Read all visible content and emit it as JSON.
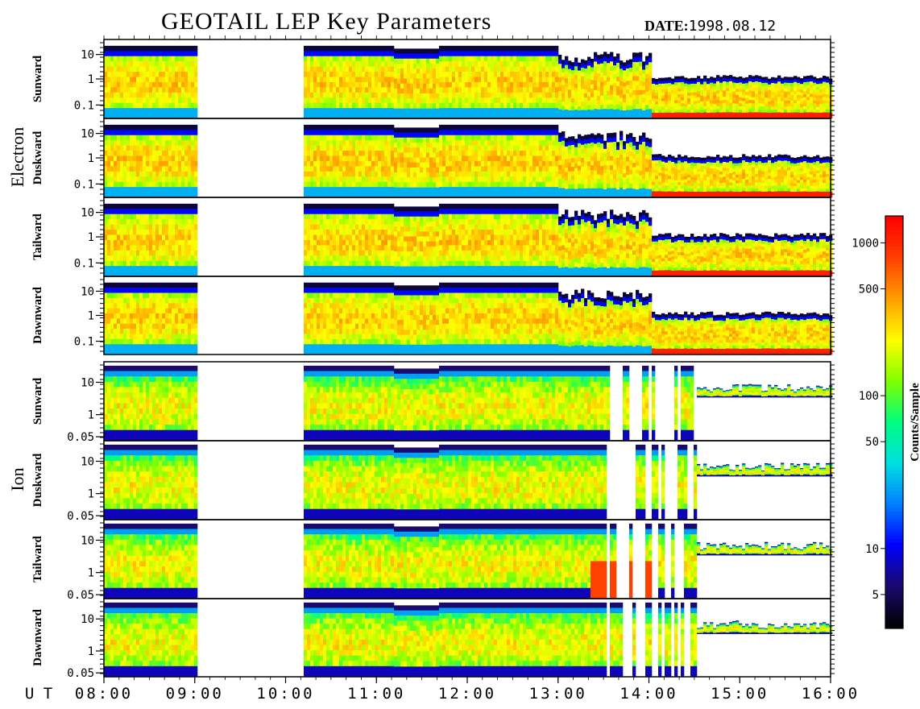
{
  "title": "GEOTAIL LEP Key Parameters",
  "date_label": "DATE:",
  "date_value": "1998.08.12",
  "ut_label": "U T",
  "colorbar": {
    "label": "Counts/Sample",
    "ticks": [
      "1000",
      "500",
      "100",
      "50",
      "10",
      "5"
    ],
    "tick_values": [
      1000,
      500,
      100,
      50,
      10,
      5
    ],
    "range": [
      3,
      1500
    ],
    "scale": "log",
    "colormap": [
      "#000000",
      "#1a0a6e",
      "#0000ff",
      "#0080ff",
      "#00e0e0",
      "#00ff80",
      "#80ff00",
      "#ffff00",
      "#ffa000",
      "#ff4000",
      "#ff0000"
    ]
  },
  "chart_data": {
    "type": "heatmap",
    "x_axis": {
      "ticks": [
        "08:00",
        "09:00",
        "10:00",
        "11:00",
        "12:00",
        "13:00",
        "14:00",
        "15:00",
        "16:00"
      ],
      "range": [
        "08:00",
        "16:00"
      ]
    },
    "data_gaps": [
      [
        "09:00",
        "10:10"
      ]
    ],
    "groups": [
      {
        "name": "Electron",
        "y_ticks": [
          "10",
          "1",
          "0.1"
        ],
        "panels": [
          {
            "label": "Sunward"
          },
          {
            "label": "Duskward"
          },
          {
            "label": "Tailward"
          },
          {
            "label": "Dawnward"
          }
        ]
      },
      {
        "name": "Ion",
        "y_ticks": [
          "10",
          "1",
          "0.05"
        ],
        "panels": [
          {
            "label": "Sunward"
          },
          {
            "label": "Duskward"
          },
          {
            "label": "Tailward"
          },
          {
            "label": "Dawnward"
          }
        ]
      }
    ]
  }
}
